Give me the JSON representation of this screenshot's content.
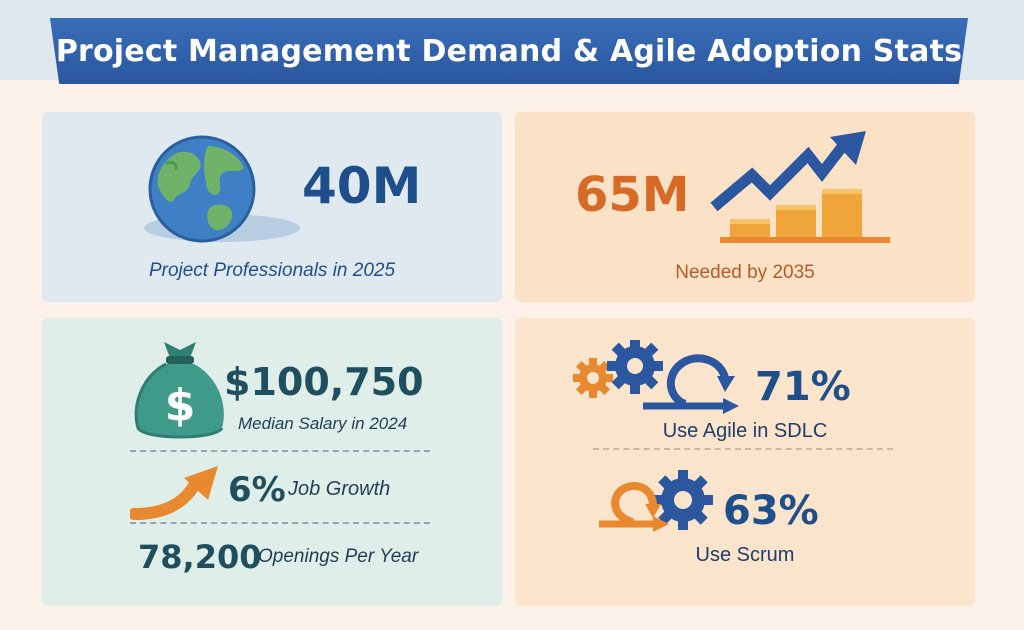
{
  "header": {
    "title": "Project Management Demand & Agile Adoption Stats"
  },
  "stats": {
    "professionals": {
      "value": "40M",
      "label": "Project Professionals in 2025"
    },
    "needed": {
      "value": "65M",
      "label": "Needed by 2035"
    },
    "salary": {
      "value": "$100,750",
      "label": "Median Salary in 2024"
    },
    "growth": {
      "value": "6%",
      "label": "Job Growth"
    },
    "openings": {
      "value": "78,200",
      "label": "Openings Per Year"
    },
    "agile": {
      "value": "71%",
      "label": "Use Agile in SDLC"
    },
    "scrum": {
      "value": "63%",
      "label": "Use Scrum"
    }
  },
  "icons": [
    "globe-icon",
    "growth-chart-icon",
    "money-bag-icon",
    "upward-arrow-icon",
    "gears-cycle-icon",
    "scrum-cycle-icon"
  ],
  "colors": {
    "blue": "#2a57a0",
    "orange": "#e9892f",
    "teal": "#2f7d73"
  }
}
